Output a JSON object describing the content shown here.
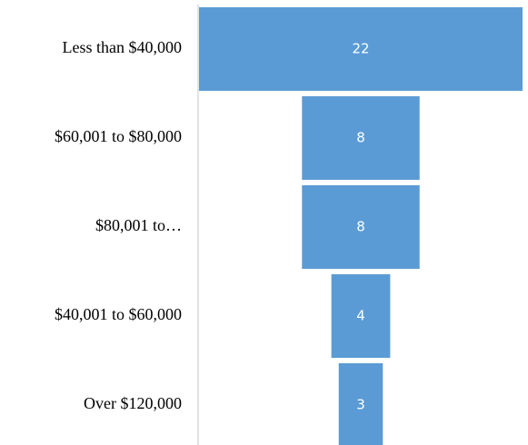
{
  "chart_data": {
    "type": "funnel",
    "categories": [
      "Less than $40,000",
      "$60,001 to $80,000",
      "$80,001 to…",
      "$40,001 to $60,000",
      "Over $120,000"
    ],
    "values": [
      22,
      8,
      8,
      4,
      3
    ],
    "color": "#5b9bd5"
  }
}
